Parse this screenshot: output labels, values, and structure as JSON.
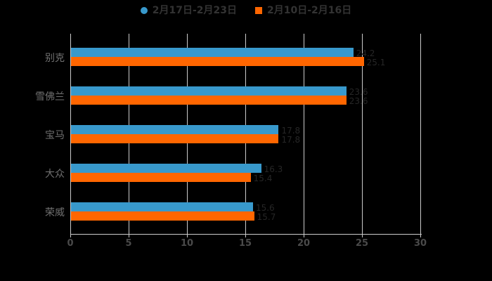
{
  "legend": {
    "items": [
      {
        "label": "2月17日-2月23日",
        "color": "#3899cc",
        "shape": "circle"
      },
      {
        "label": "2月10日-2月16日",
        "color": "#ff6600",
        "shape": "square"
      }
    ]
  },
  "chart_data": {
    "type": "bar",
    "orientation": "horizontal",
    "title": "",
    "categories": [
      "别克",
      "雪佛兰",
      "宝马",
      "大众",
      "荣威"
    ],
    "series": [
      {
        "name": "2月17日-2月23日",
        "color": "#3899cc",
        "values": [
          24.2,
          23.6,
          17.8,
          16.3,
          15.6
        ]
      },
      {
        "name": "2月10日-2月16日",
        "color": "#ff6600",
        "values": [
          25.1,
          23.6,
          17.8,
          15.4,
          15.7
        ]
      }
    ],
    "xlim": [
      0,
      30
    ],
    "x_ticks": [
      0,
      5,
      10,
      15,
      20,
      25,
      30
    ],
    "grid": true,
    "legend_position": "top",
    "background_color": "#000000",
    "grid_color": "#cccccc",
    "axis_label_color": "#4a4a4a",
    "category_label_color": "#707070",
    "value_label_color": "#262626"
  }
}
